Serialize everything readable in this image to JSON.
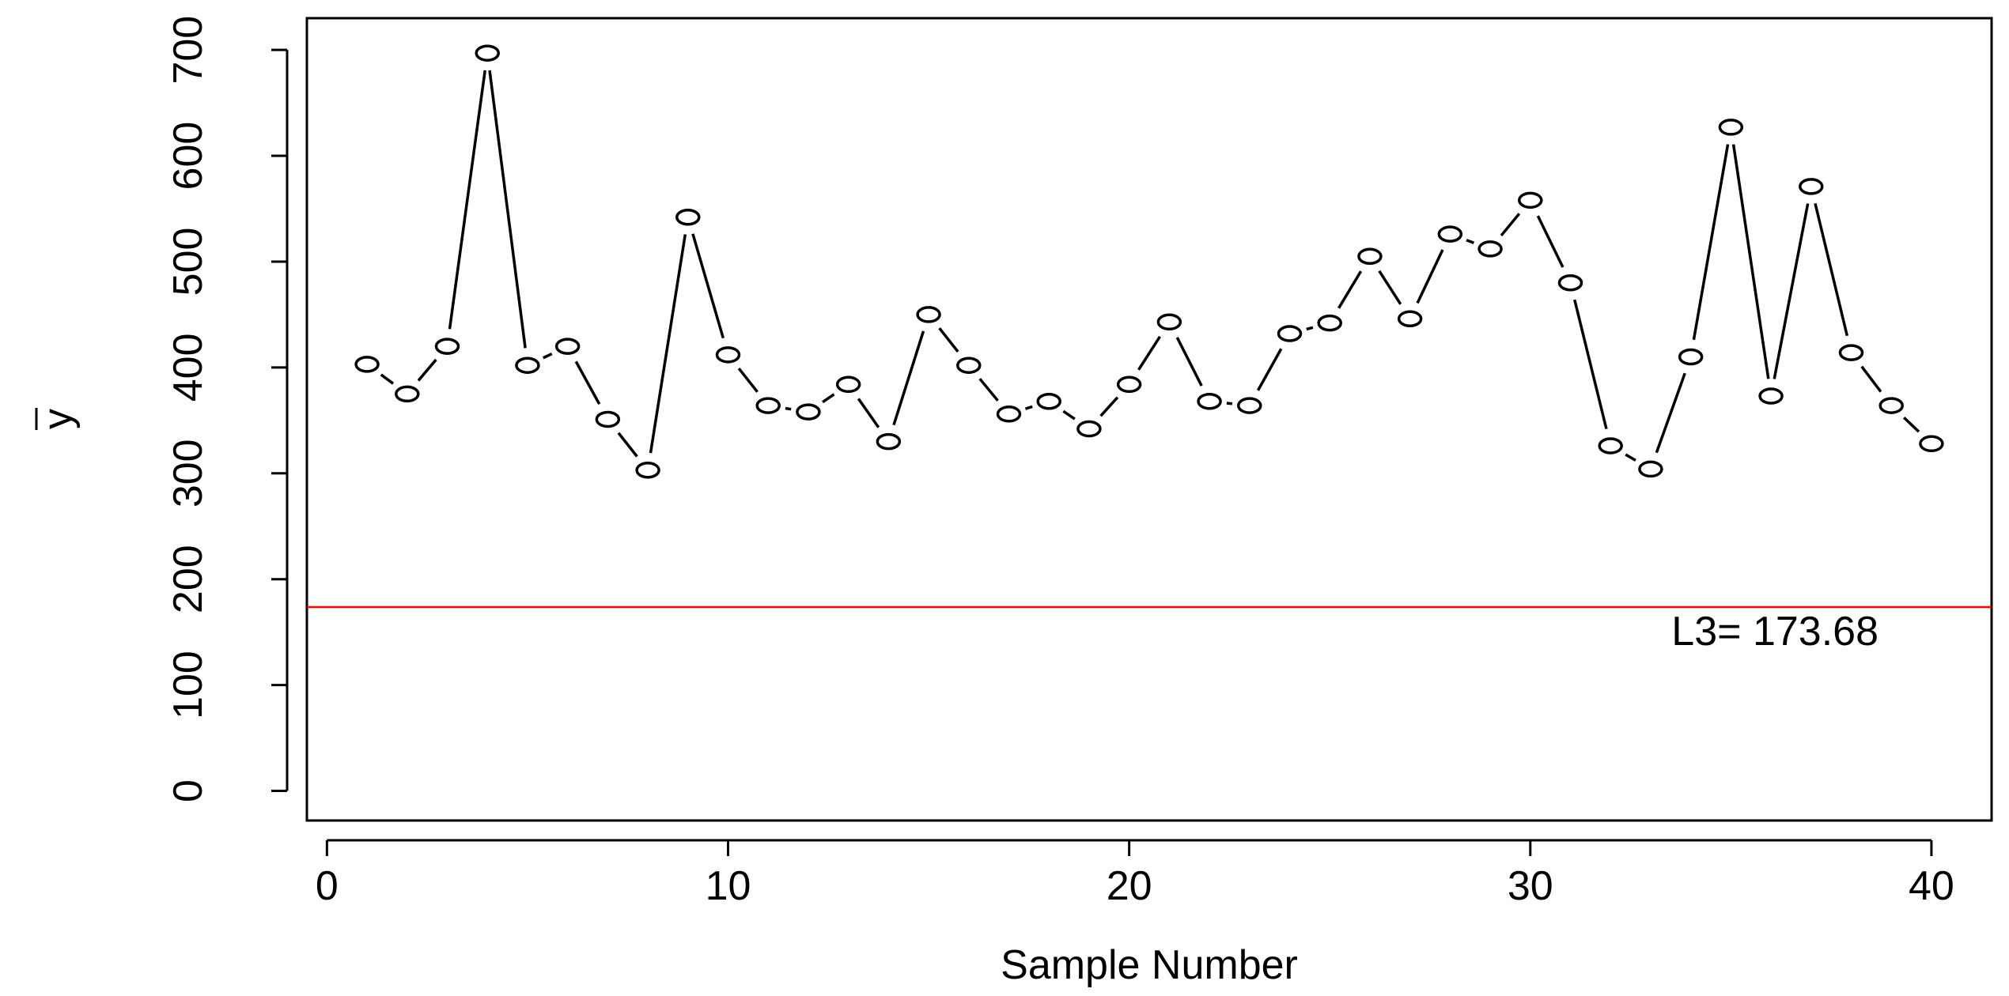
{
  "chart_data": {
    "type": "line",
    "xlabel": "Sample Number",
    "ylabel": "y",
    "ylabel_overbar": true,
    "xlim": [
      -0.5,
      41.5
    ],
    "ylim": [
      -28,
      730
    ],
    "x_ticks": [
      0,
      10,
      20,
      30,
      40
    ],
    "y_ticks": [
      0,
      100,
      200,
      300,
      400,
      500,
      600,
      700
    ],
    "grid": false,
    "markers": "open-circle",
    "series": [
      {
        "x": [
          1,
          2,
          3,
          4,
          5,
          6,
          7,
          8,
          9,
          10,
          11,
          12,
          13,
          14,
          15,
          16,
          17,
          18,
          19,
          20,
          21,
          22,
          23,
          24,
          25,
          26,
          27,
          28,
          29,
          30,
          31,
          32,
          33,
          34,
          35,
          36,
          37,
          38,
          39,
          40
        ],
        "values": [
          403,
          375,
          420,
          697,
          402,
          420,
          351,
          303,
          542,
          412,
          364,
          358,
          384,
          330,
          450,
          402,
          356,
          368,
          342,
          384,
          443,
          368,
          364,
          432,
          442,
          505,
          446,
          526,
          512,
          558,
          480,
          326,
          304,
          410,
          627,
          373,
          571,
          414,
          364,
          328
        ]
      }
    ],
    "reference_line": {
      "value": 173.68,
      "label": "L3= 173.68",
      "color": "#ff0000"
    },
    "colors": {
      "line": "#000000",
      "marker_fill": "#ffffff",
      "reference": "#ff0000"
    }
  }
}
